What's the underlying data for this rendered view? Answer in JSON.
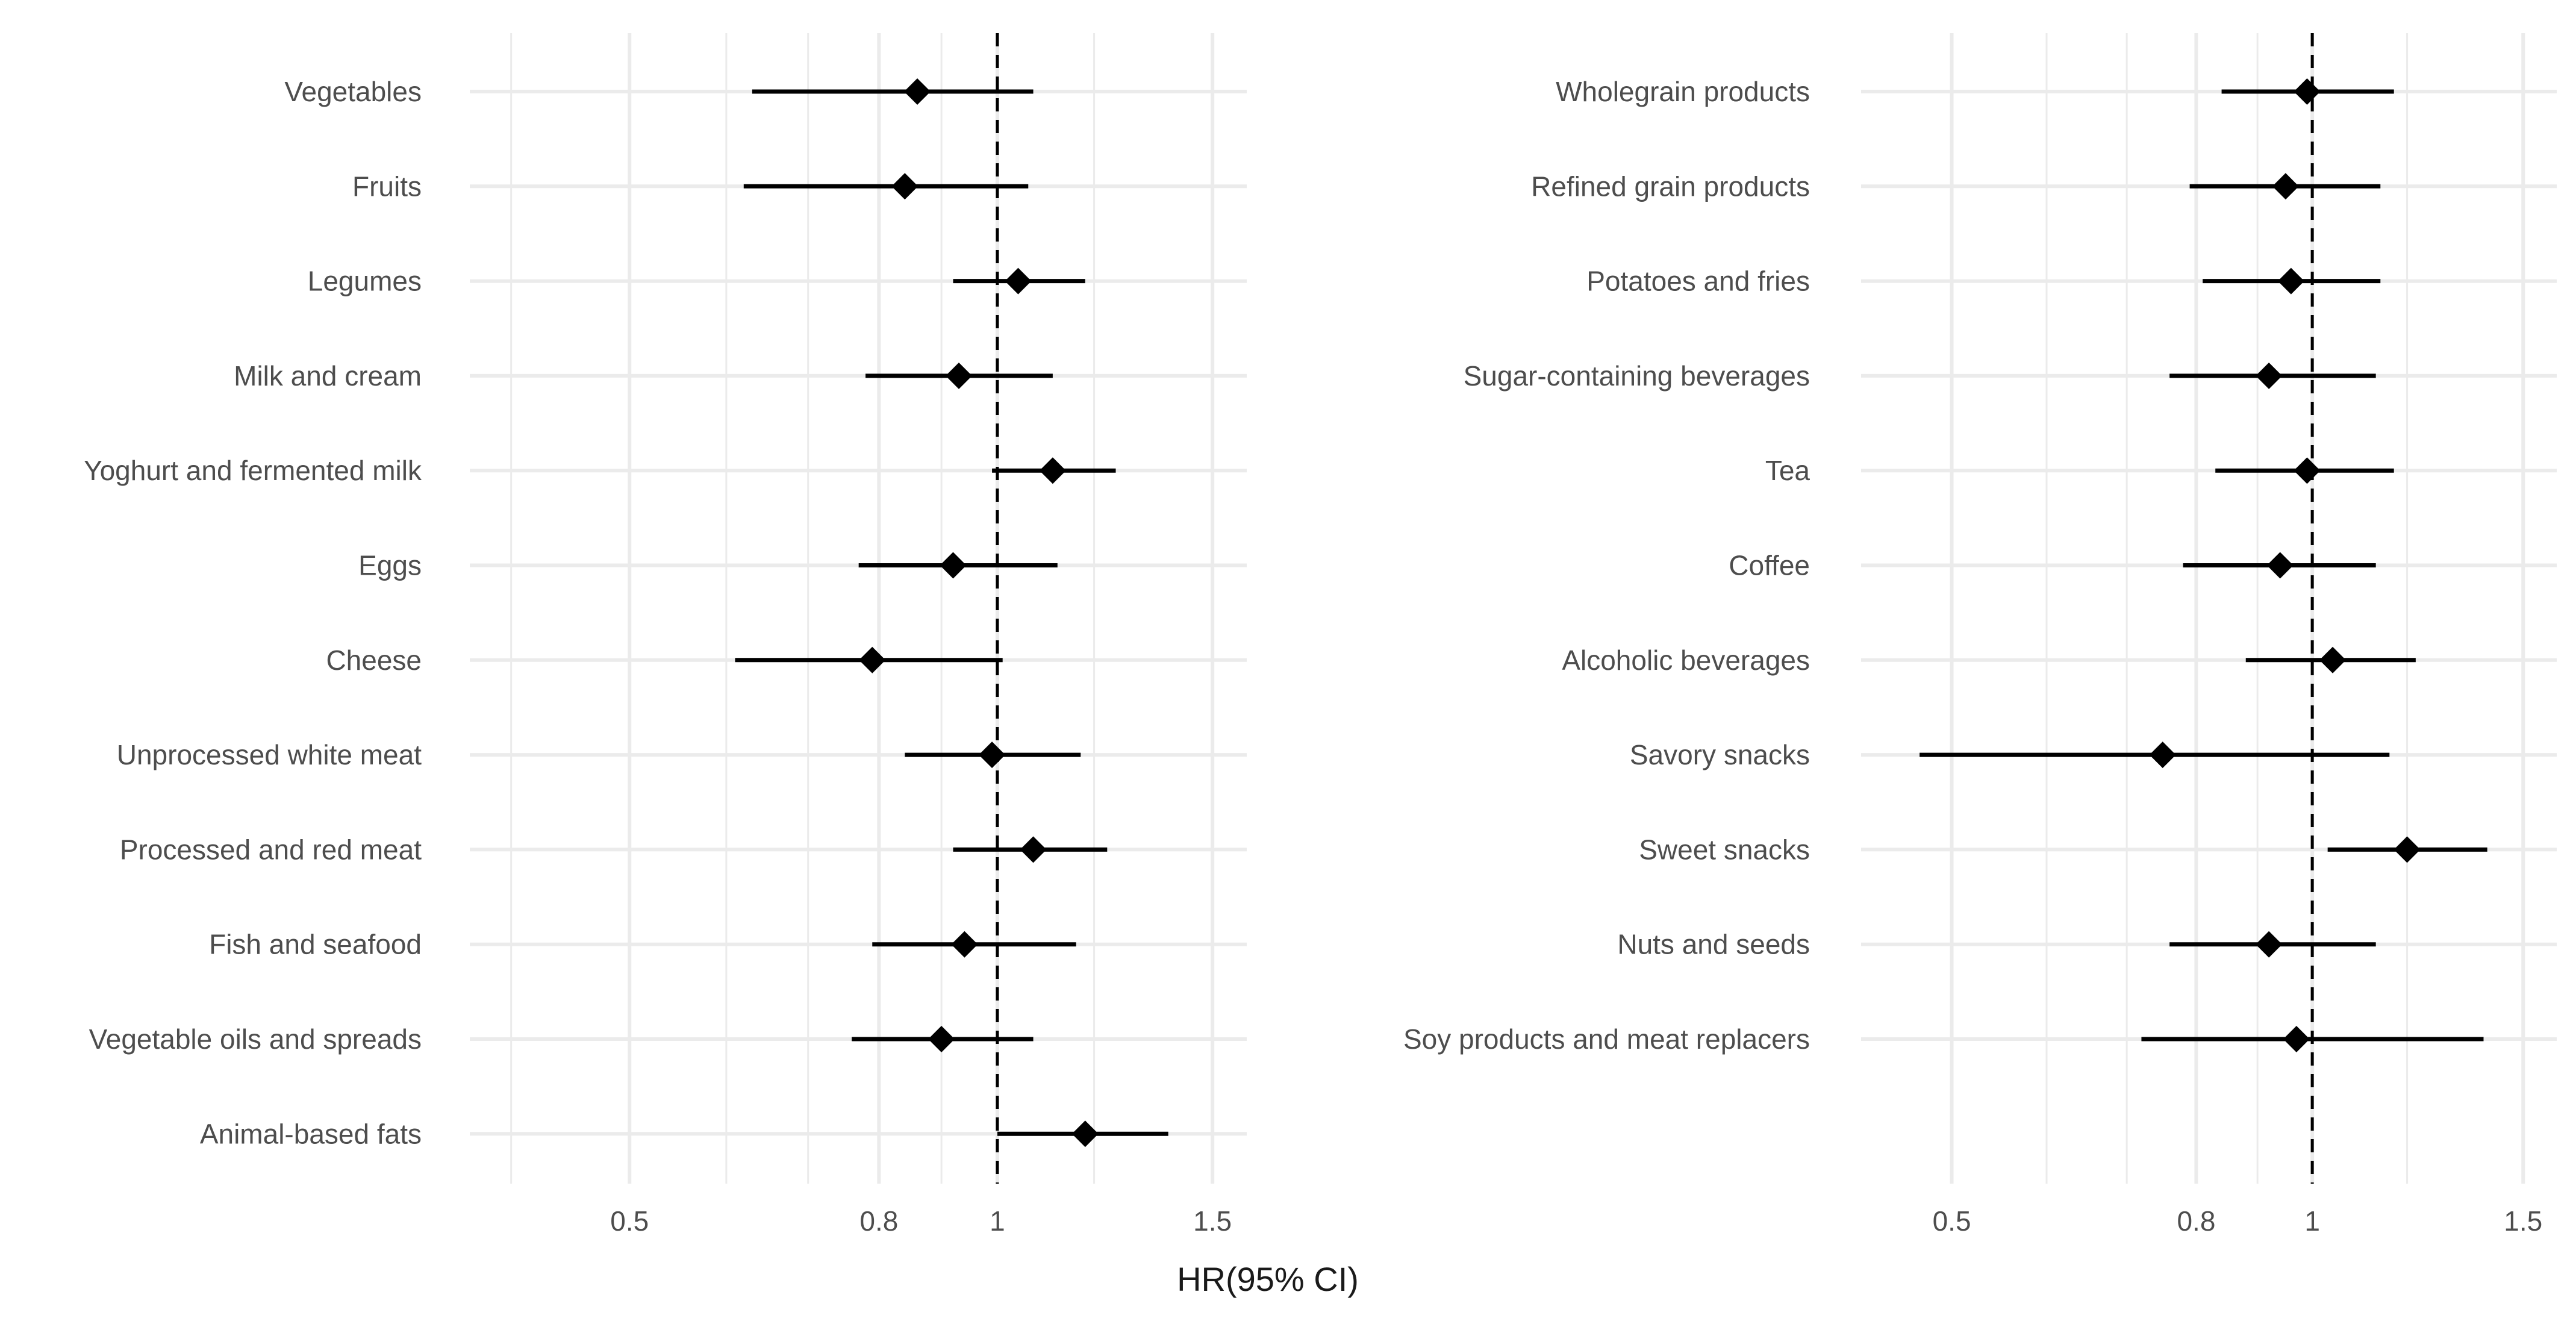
{
  "chart_data": {
    "type": "forest",
    "x_title": "HR(95% CI)",
    "reference_line": 1,
    "x_scale": "log",
    "panels": [
      {
        "xlim": [
          0.37,
          1.6
        ],
        "ticks": [
          0.5,
          0.8,
          1,
          1.5
        ],
        "tick_labels": [
          "0.5",
          "0.8",
          "1",
          "1.5"
        ],
        "minor_ticks": [
          0.4,
          0.6,
          0.7,
          0.9,
          1.2
        ],
        "rows": [
          {
            "label": "Vegetables",
            "hr": 0.86,
            "lower": 0.63,
            "upper": 1.07
          },
          {
            "label": "Fruits",
            "hr": 0.84,
            "lower": 0.62,
            "upper": 1.06
          },
          {
            "label": "Legumes",
            "hr": 1.04,
            "lower": 0.92,
            "upper": 1.18
          },
          {
            "label": "Milk and cream",
            "hr": 0.93,
            "lower": 0.78,
            "upper": 1.11
          },
          {
            "label": "Yoghurt and fermented milk",
            "hr": 1.11,
            "lower": 0.99,
            "upper": 1.25
          },
          {
            "label": "Eggs",
            "hr": 0.92,
            "lower": 0.77,
            "upper": 1.12
          },
          {
            "label": "Cheese",
            "hr": 0.79,
            "lower": 0.61,
            "upper": 1.01
          },
          {
            "label": "Unprocessed white meat",
            "hr": 0.99,
            "lower": 0.84,
            "upper": 1.17
          },
          {
            "label": "Processed and red meat",
            "hr": 1.07,
            "lower": 0.92,
            "upper": 1.23
          },
          {
            "label": "Fish and seafood",
            "hr": 0.94,
            "lower": 0.79,
            "upper": 1.16
          },
          {
            "label": "Vegetable oils and spreads",
            "hr": 0.9,
            "lower": 0.76,
            "upper": 1.07
          },
          {
            "label": "Animal-based fats",
            "hr": 1.18,
            "lower": 1.0,
            "upper": 1.38
          }
        ]
      },
      {
        "xlim": [
          0.42,
          1.6
        ],
        "ticks": [
          0.5,
          0.8,
          1,
          1.5
        ],
        "tick_labels": [
          "0.5",
          "0.8",
          "1",
          "1.5"
        ],
        "minor_ticks": [
          0.6,
          0.7,
          0.9,
          1.2
        ],
        "rows": [
          {
            "label": "Wholegrain products",
            "hr": 0.99,
            "lower": 0.84,
            "upper": 1.17
          },
          {
            "label": "Refined grain products",
            "hr": 0.95,
            "lower": 0.79,
            "upper": 1.14
          },
          {
            "label": "Potatoes and fries",
            "hr": 0.96,
            "lower": 0.81,
            "upper": 1.14
          },
          {
            "label": "Sugar-containing beverages",
            "hr": 0.92,
            "lower": 0.76,
            "upper": 1.13
          },
          {
            "label": "Tea",
            "hr": 0.99,
            "lower": 0.83,
            "upper": 1.17
          },
          {
            "label": "Coffee",
            "hr": 0.94,
            "lower": 0.78,
            "upper": 1.13
          },
          {
            "label": "Alcoholic beverages",
            "hr": 1.04,
            "lower": 0.88,
            "upper": 1.22
          },
          {
            "label": "Savory snacks",
            "hr": 0.75,
            "lower": 0.47,
            "upper": 1.16
          },
          {
            "label": "Sweet snacks",
            "hr": 1.2,
            "lower": 1.03,
            "upper": 1.4
          },
          {
            "label": "Nuts and seeds",
            "hr": 0.92,
            "lower": 0.76,
            "upper": 1.13
          },
          {
            "label": "Soy products and meat replacers",
            "hr": 0.97,
            "lower": 0.72,
            "upper": 1.39
          }
        ]
      }
    ]
  }
}
